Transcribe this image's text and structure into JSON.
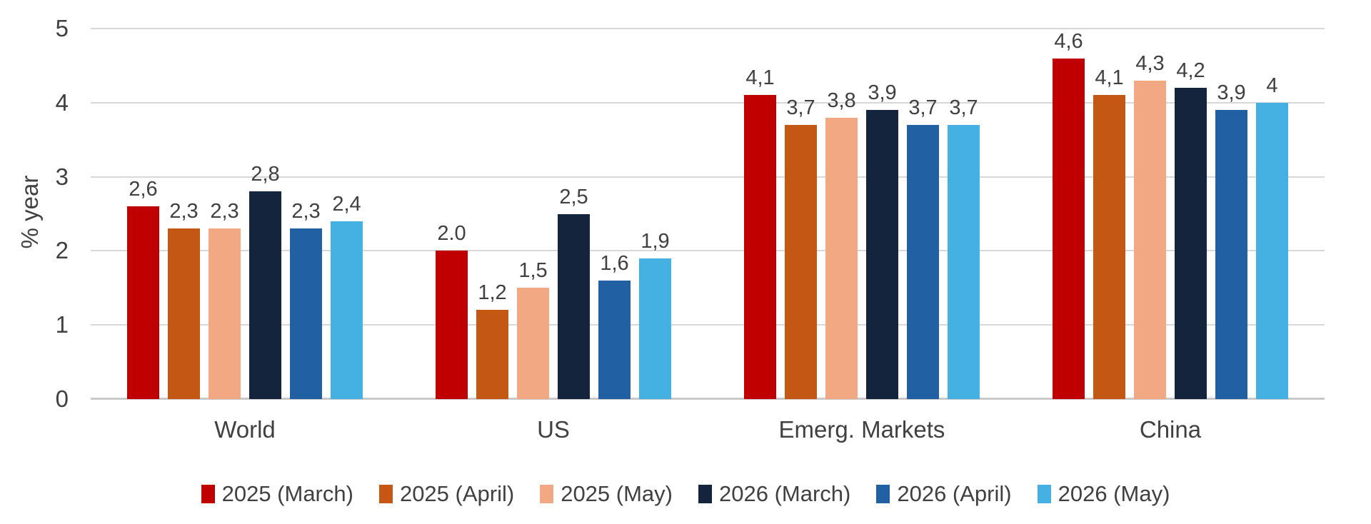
{
  "chart_data": {
    "type": "bar",
    "title": "",
    "xlabel": "",
    "ylabel": "% year",
    "ylim": [
      0,
      5
    ],
    "yticks": [
      0,
      1,
      2,
      3,
      4,
      5
    ],
    "grid": true,
    "legend_position": "bottom",
    "categories": [
      "World",
      "US",
      "Emerg. Markets",
      "China"
    ],
    "series": [
      {
        "name": "2025 (March)",
        "color": "#C00000",
        "values": [
          2.6,
          2.0,
          4.1,
          4.6
        ],
        "labels": [
          "2,6",
          "2.0",
          "4,1",
          "4,6"
        ]
      },
      {
        "name": "2025 (April)",
        "color": "#C55714",
        "values": [
          2.3,
          1.2,
          3.7,
          4.1
        ],
        "labels": [
          "2,3",
          "1,2",
          "3,7",
          "4,1"
        ]
      },
      {
        "name": "2025 (May)",
        "color": "#F2A983",
        "values": [
          2.3,
          1.5,
          3.8,
          4.3
        ],
        "labels": [
          "2,3",
          "1,5",
          "3,8",
          "4,3"
        ]
      },
      {
        "name": "2026 (March)",
        "color": "#13243C",
        "values": [
          2.8,
          2.5,
          3.9,
          4.2
        ],
        "labels": [
          "2,8",
          "2,5",
          "3,9",
          "4,2"
        ]
      },
      {
        "name": "2026 (April)",
        "color": "#2160A3",
        "values": [
          2.3,
          1.6,
          3.7,
          3.9
        ],
        "labels": [
          "2,3",
          "1,6",
          "3,7",
          "3,9"
        ]
      },
      {
        "name": "2026 (May)",
        "color": "#45B1E2",
        "values": [
          2.4,
          1.9,
          3.7,
          4.0
        ],
        "labels": [
          "2,4",
          "1,9",
          "3,7",
          "4"
        ]
      }
    ],
    "colors": {
      "text": "#404040",
      "gridline": "#D8D8D8",
      "axis_line": "#C9C9C9",
      "background": "#FFFFFF"
    }
  }
}
